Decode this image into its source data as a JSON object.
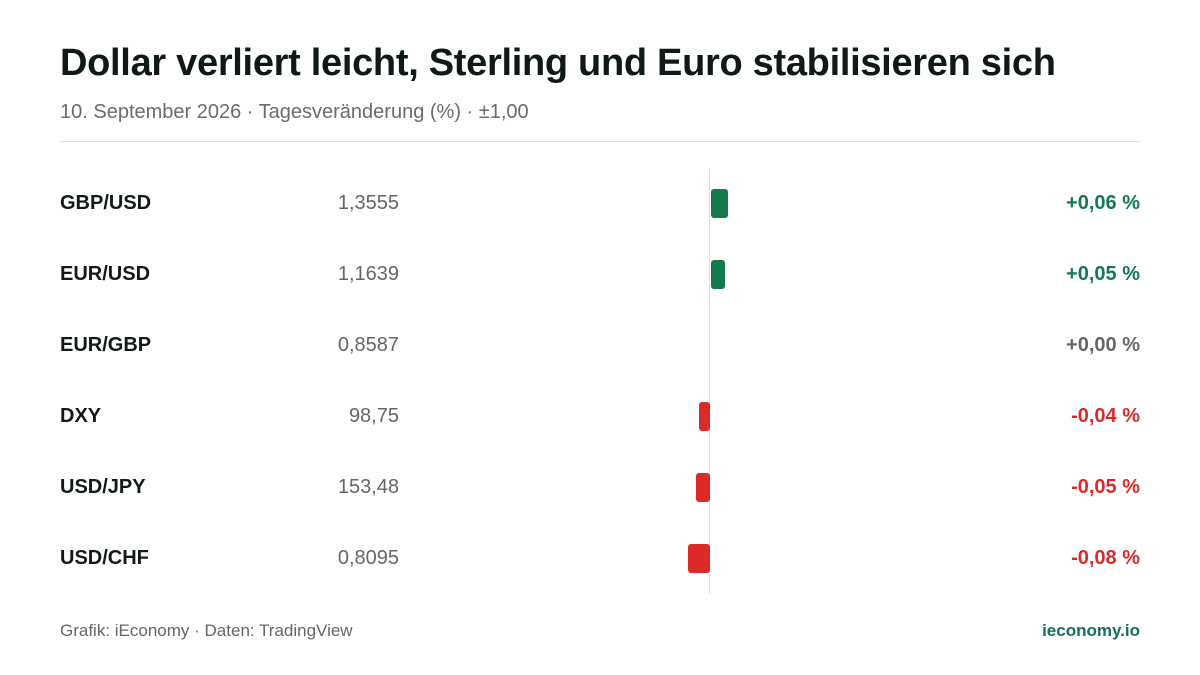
{
  "header": {
    "title": "Dollar verliert leicht, Sterling und Euro stabilisieren sich",
    "subtitle": "10. September 2026 · Tagesveränderung (%) · ±1,00"
  },
  "footer": {
    "source": "Grafik: iEconomy · Daten: TradingView",
    "brand": "ieconomy.io"
  },
  "colors": {
    "positive": "#137a4f",
    "negative": "#dc2a2a",
    "neutral": "#666666"
  },
  "chart_data": {
    "type": "bar",
    "orientation": "horizontal",
    "title": "Dollar verliert leicht, Sterling und Euro stabilisieren sich",
    "subtitle": "10. September 2026 · Tagesveränderung (%) · ±1,00",
    "unit": "%",
    "grid": false,
    "rows": [
      {
        "pair": "GBP/USD",
        "price": "1,3555",
        "change": 0.06,
        "change_label": "+0,06 %"
      },
      {
        "pair": "EUR/USD",
        "price": "1,1639",
        "change": 0.05,
        "change_label": "+0,05 %"
      },
      {
        "pair": "EUR/GBP",
        "price": "0,8587",
        "change": 0.0,
        "change_label": "+0,00 %"
      },
      {
        "pair": "DXY",
        "price": "98,75",
        "change": -0.04,
        "change_label": "-0,04 %"
      },
      {
        "pair": "USD/JPY",
        "price": "153,48",
        "change": -0.05,
        "change_label": "-0,05 %"
      },
      {
        "pair": "USD/CHF",
        "price": "0,8095",
        "change": -0.08,
        "change_label": "-0,08 %"
      }
    ]
  }
}
